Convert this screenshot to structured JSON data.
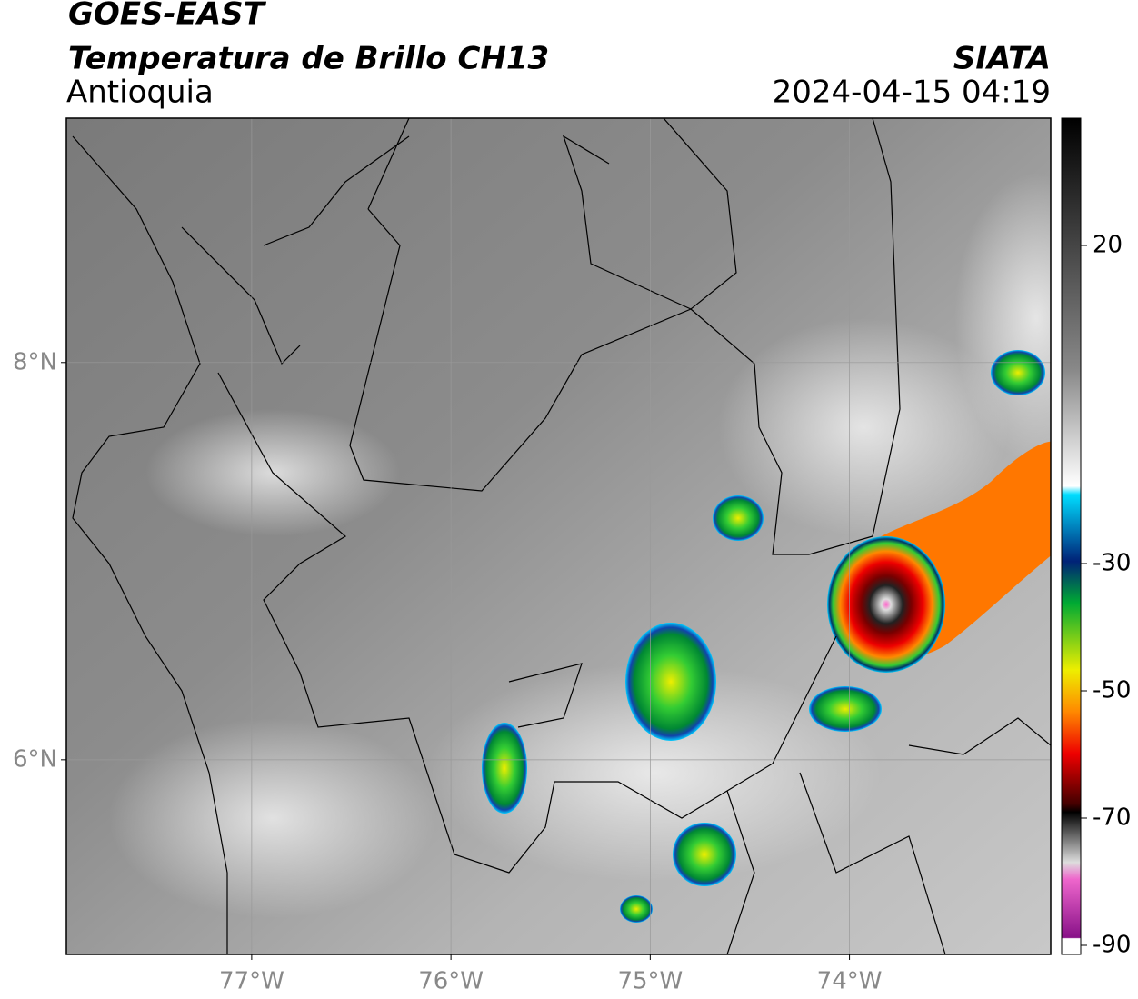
{
  "header": {
    "satellite": "GOES-EAST",
    "product": "Temperatura de Brillo CH13",
    "region": "Antioquia",
    "agency": "SIATA",
    "datetime": "2024-04-15 04:19"
  },
  "map": {
    "xlim": [
      -77.93,
      -72.99
    ],
    "ylim": [
      5.02,
      9.23
    ],
    "xticks": [
      {
        "value": -77,
        "label": "77°W"
      },
      {
        "value": -76,
        "label": "76°W"
      },
      {
        "value": -75,
        "label": "75°W"
      },
      {
        "value": -74,
        "label": "74°W"
      }
    ],
    "yticks": [
      {
        "value": 8,
        "label": "8°N"
      },
      {
        "value": 6,
        "label": "6°N"
      }
    ],
    "grid": true
  },
  "colorbar": {
    "lim": [
      -91.43,
      40
    ],
    "ticks": [
      20,
      -30,
      -50,
      -70,
      -90
    ]
  }
}
